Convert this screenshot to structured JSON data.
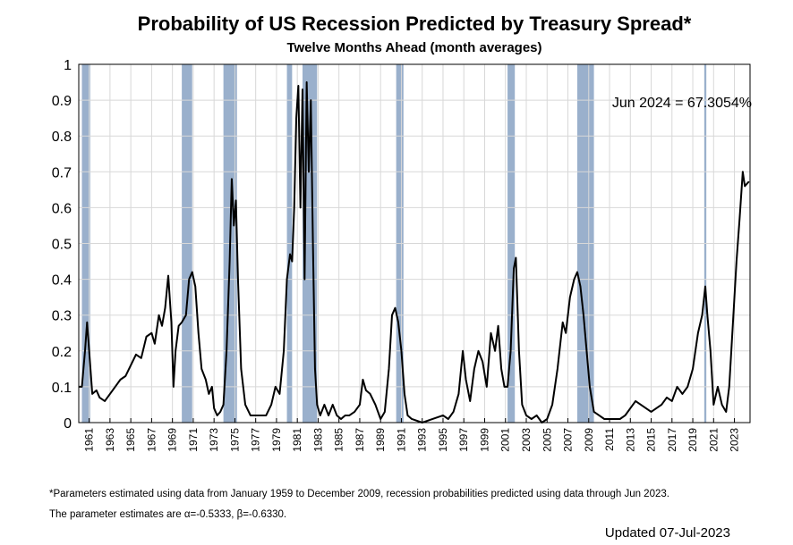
{
  "chart_data": {
    "type": "line",
    "title": "Probability of US Recession Predicted by Treasury Spread*",
    "subtitle": "Twelve Months Ahead (month averages)",
    "annotation": "Jun 2024 = 67.3054%",
    "footnote": [
      "*Parameters estimated using data from January 1959 to December 2009, recession probabilities predicted using data through Jun 2023.",
      "The parameter estimates are α=-0.5333, β=-0.6330."
    ],
    "updated": "Updated 07-Jul-2023",
    "color": "#000000",
    "recession_color": "#9ab0cc",
    "grid": true,
    "xlim": [
      1960,
      2024.5
    ],
    "ylim": [
      0,
      1
    ],
    "xticks": [
      1961,
      1963,
      1965,
      1967,
      1969,
      1971,
      1973,
      1975,
      1977,
      1979,
      1981,
      1983,
      1985,
      1987,
      1989,
      1991,
      1993,
      1995,
      1997,
      1999,
      2001,
      2003,
      2005,
      2007,
      2009,
      2011,
      2013,
      2015,
      2017,
      2019,
      2021,
      2023
    ],
    "yticks": [
      0,
      0.1,
      0.2,
      0.3,
      0.4,
      0.5,
      0.6,
      0.7,
      0.8,
      0.9,
      1
    ],
    "recessions": [
      [
        1960.3,
        1961.1
      ],
      [
        1969.9,
        1970.9
      ],
      [
        1973.9,
        1975.2
      ],
      [
        1980.0,
        1980.5
      ],
      [
        1981.5,
        1982.9
      ],
      [
        1990.5,
        1991.2
      ],
      [
        2001.2,
        2001.9
      ],
      [
        2007.9,
        2009.5
      ],
      [
        2020.1,
        2020.3
      ]
    ],
    "x": [
      1960.0,
      1960.3,
      1960.6,
      1960.8,
      1961.0,
      1961.3,
      1961.7,
      1962.0,
      1962.5,
      1963.0,
      1963.5,
      1964.0,
      1964.5,
      1965.0,
      1965.5,
      1966.0,
      1966.5,
      1967.0,
      1967.3,
      1967.7,
      1968.0,
      1968.3,
      1968.6,
      1968.9,
      1969.1,
      1969.3,
      1969.6,
      1969.9,
      1970.3,
      1970.6,
      1970.9,
      1971.2,
      1971.5,
      1971.8,
      1972.2,
      1972.5,
      1972.8,
      1973.0,
      1973.3,
      1973.6,
      1973.9,
      1974.2,
      1974.5,
      1974.7,
      1974.9,
      1975.1,
      1975.3,
      1975.6,
      1976.0,
      1976.5,
      1977.0,
      1977.5,
      1978.0,
      1978.5,
      1978.9,
      1979.3,
      1979.7,
      1980.0,
      1980.3,
      1980.5,
      1980.7,
      1980.9,
      1981.1,
      1981.3,
      1981.5,
      1981.7,
      1981.9,
      1982.1,
      1982.3,
      1982.5,
      1982.7,
      1982.9,
      1983.2,
      1983.6,
      1984.0,
      1984.4,
      1984.8,
      1985.2,
      1985.6,
      1986.0,
      1986.5,
      1987.0,
      1987.3,
      1987.6,
      1988.0,
      1988.5,
      1989.0,
      1989.4,
      1989.8,
      1990.1,
      1990.4,
      1990.7,
      1991.0,
      1991.3,
      1991.6,
      1992.0,
      1993.0,
      1994.0,
      1995.0,
      1995.5,
      1996.0,
      1996.5,
      1996.9,
      1997.2,
      1997.6,
      1998.0,
      1998.4,
      1998.8,
      1999.2,
      1999.6,
      2000.0,
      2000.3,
      2000.6,
      2000.9,
      2001.2,
      2001.5,
      2001.8,
      2002.0,
      2002.3,
      2002.6,
      2003.0,
      2003.5,
      2004.0,
      2004.5,
      2005.0,
      2005.5,
      2006.0,
      2006.5,
      2006.8,
      2007.2,
      2007.6,
      2007.9,
      2008.2,
      2008.5,
      2008.8,
      2009.1,
      2009.5,
      2010.0,
      2010.5,
      2011.0,
      2012.0,
      2012.5,
      2013.0,
      2013.5,
      2014.0,
      2014.5,
      2015.0,
      2015.5,
      2016.0,
      2016.5,
      2017.0,
      2017.5,
      2018.0,
      2018.5,
      2019.0,
      2019.5,
      2019.9,
      2020.2,
      2020.4,
      2020.7,
      2021.0,
      2021.4,
      2021.8,
      2022.2,
      2022.5,
      2022.9,
      2023.2,
      2023.5,
      2023.8,
      2024.0,
      2024.4
    ],
    "values": [
      0.1,
      0.1,
      0.2,
      0.28,
      0.2,
      0.08,
      0.09,
      0.07,
      0.06,
      0.08,
      0.1,
      0.12,
      0.13,
      0.16,
      0.19,
      0.18,
      0.24,
      0.25,
      0.22,
      0.3,
      0.27,
      0.32,
      0.41,
      0.28,
      0.1,
      0.2,
      0.27,
      0.28,
      0.3,
      0.4,
      0.42,
      0.38,
      0.25,
      0.15,
      0.12,
      0.08,
      0.1,
      0.04,
      0.02,
      0.03,
      0.05,
      0.2,
      0.45,
      0.68,
      0.55,
      0.62,
      0.4,
      0.15,
      0.05,
      0.02,
      0.02,
      0.02,
      0.02,
      0.05,
      0.1,
      0.08,
      0.2,
      0.4,
      0.47,
      0.45,
      0.6,
      0.85,
      0.94,
      0.6,
      0.93,
      0.4,
      0.95,
      0.7,
      0.9,
      0.5,
      0.15,
      0.05,
      0.02,
      0.05,
      0.02,
      0.05,
      0.02,
      0.01,
      0.02,
      0.02,
      0.03,
      0.05,
      0.12,
      0.09,
      0.08,
      0.05,
      0.01,
      0.03,
      0.15,
      0.3,
      0.32,
      0.28,
      0.2,
      0.08,
      0.02,
      0.01,
      0,
      0.01,
      0.02,
      0.01,
      0.03,
      0.08,
      0.2,
      0.12,
      0.06,
      0.15,
      0.2,
      0.17,
      0.1,
      0.25,
      0.2,
      0.27,
      0.15,
      0.1,
      0.1,
      0.2,
      0.43,
      0.46,
      0.2,
      0.05,
      0.02,
      0.01,
      0.02,
      0,
      0.01,
      0.05,
      0.15,
      0.28,
      0.25,
      0.35,
      0.4,
      0.42,
      0.38,
      0.3,
      0.2,
      0.1,
      0.03,
      0.02,
      0.01,
      0.01,
      0.01,
      0.02,
      0.04,
      0.06,
      0.05,
      0.04,
      0.03,
      0.04,
      0.05,
      0.07,
      0.06,
      0.1,
      0.08,
      0.1,
      0.15,
      0.25,
      0.3,
      0.38,
      0.3,
      0.2,
      0.05,
      0.1,
      0.05,
      0.03,
      0.1,
      0.3,
      0.45,
      0.57,
      0.7,
      0.66,
      0.673
    ]
  }
}
